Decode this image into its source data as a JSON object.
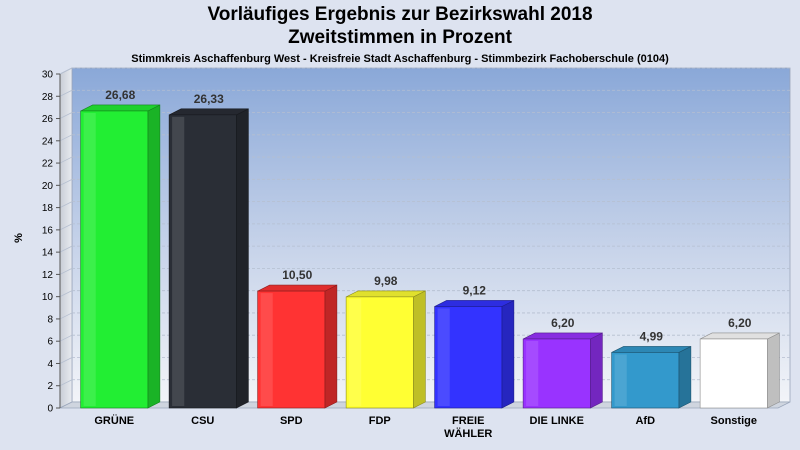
{
  "chart_data": {
    "type": "bar",
    "title_line1": "Vorläufiges Ergebnis zur Bezirkswahl 2018",
    "title_line2": "Zweitstimmen in Prozent",
    "subtitle": "Stimmkreis Aschaffenburg West - Kreisfreie Stadt Aschaffenburg - Stimmbezirk Fachoberschule (0104)",
    "ylabel": "%",
    "ylim": [
      0,
      30
    ],
    "ytick_step": 2,
    "grid": true,
    "categories": [
      "GRÜNE",
      "CSU",
      "SPD",
      "FDP",
      "FREIE WÄHLER",
      "DIE LINKE",
      "AfD",
      "Sonstige"
    ],
    "category_lines": [
      [
        "GRÜNE"
      ],
      [
        "CSU"
      ],
      [
        "SPD"
      ],
      [
        "FDP"
      ],
      [
        "FREIE",
        "WÄHLER"
      ],
      [
        "DIE LINKE"
      ],
      [
        "AfD"
      ],
      [
        "Sonstige"
      ]
    ],
    "values": [
      26.68,
      26.33,
      10.5,
      9.98,
      9.12,
      6.2,
      4.99,
      6.2
    ],
    "value_labels": [
      "26,68",
      "26,33",
      "10,50",
      "9,98",
      "9,12",
      "6,20",
      "4,99",
      "6,20"
    ],
    "colors": [
      "#22ee33",
      "#2a2e36",
      "#ff3333",
      "#ffff33",
      "#3333ff",
      "#9933ff",
      "#3399cc",
      "#ffffff"
    ]
  }
}
